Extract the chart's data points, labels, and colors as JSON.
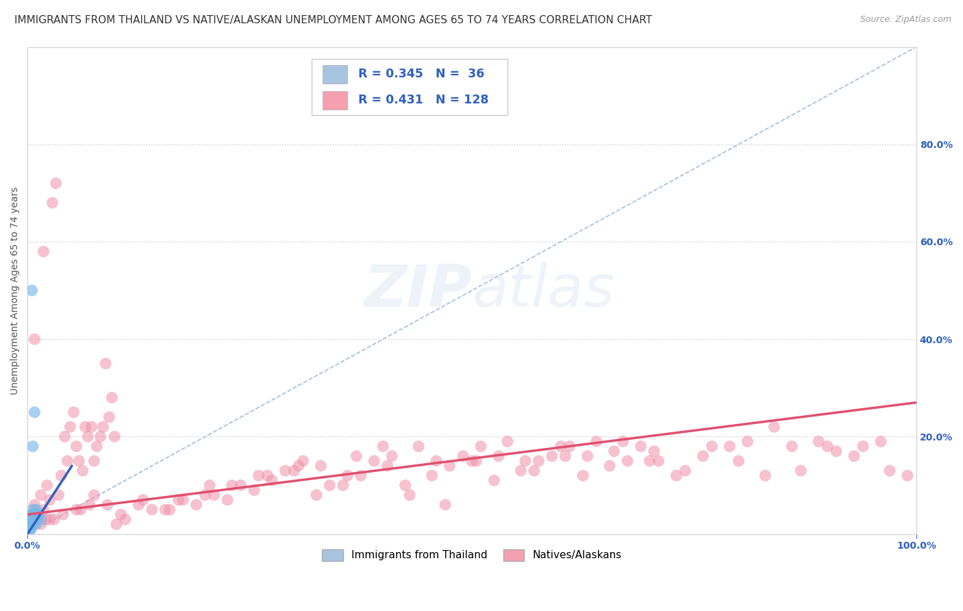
{
  "title": "IMMIGRANTS FROM THAILAND VS NATIVE/ALASKAN UNEMPLOYMENT AMONG AGES 65 TO 74 YEARS CORRELATION CHART",
  "source": "Source: ZipAtlas.com",
  "ylabel": "Unemployment Among Ages 65 to 74 years",
  "xlim": [
    0,
    1.0
  ],
  "ylim": [
    0,
    1.0
  ],
  "ytick_right_labels": [
    "20.0%",
    "40.0%",
    "60.0%",
    "80.0%"
  ],
  "ytick_right_values": [
    0.2,
    0.4,
    0.6,
    0.8
  ],
  "legend_color1": "#a8c4e0",
  "legend_color2": "#f4a0b0",
  "dot_color1": "#7ab8e8",
  "dot_color2": "#f090a8",
  "trendline_color1": "#3060c0",
  "trendline_color2": "#e05070",
  "diagonal_color": "#90b8e0",
  "background_color": "#ffffff",
  "title_fontsize": 11,
  "source_fontsize": 9,
  "label_fontsize": 10,
  "tick_fontsize": 10,
  "blue_scatter_x": [
    0.005,
    0.008,
    0.003,
    0.006,
    0.004,
    0.007,
    0.009,
    0.005,
    0.003,
    0.008,
    0.01,
    0.006,
    0.004,
    0.012,
    0.009,
    0.007,
    0.011,
    0.005,
    0.006,
    0.008,
    0.003,
    0.004,
    0.007,
    0.002,
    0.005,
    0.008,
    0.006,
    0.009,
    0.004,
    0.01,
    0.007,
    0.012,
    0.015,
    0.006,
    0.004,
    0.003
  ],
  "blue_scatter_y": [
    0.5,
    0.04,
    0.03,
    0.05,
    0.02,
    0.03,
    0.04,
    0.02,
    0.01,
    0.03,
    0.05,
    0.02,
    0.03,
    0.04,
    0.02,
    0.03,
    0.04,
    0.02,
    0.03,
    0.04,
    0.02,
    0.01,
    0.03,
    0.02,
    0.04,
    0.25,
    0.18,
    0.03,
    0.02,
    0.04,
    0.03,
    0.04,
    0.03,
    0.02,
    0.03,
    0.02
  ],
  "pink_scatter_x": [
    0.005,
    0.008,
    0.012,
    0.015,
    0.018,
    0.022,
    0.025,
    0.028,
    0.032,
    0.035,
    0.038,
    0.042,
    0.045,
    0.048,
    0.052,
    0.055,
    0.058,
    0.062,
    0.065,
    0.068,
    0.072,
    0.075,
    0.078,
    0.082,
    0.085,
    0.088,
    0.092,
    0.095,
    0.098,
    0.02,
    0.04,
    0.07,
    0.1,
    0.13,
    0.16,
    0.2,
    0.23,
    0.27,
    0.3,
    0.33,
    0.37,
    0.4,
    0.43,
    0.47,
    0.5,
    0.53,
    0.57,
    0.6,
    0.63,
    0.67,
    0.7,
    0.73,
    0.77,
    0.8,
    0.83,
    0.87,
    0.9,
    0.93,
    0.97,
    0.03,
    0.06,
    0.09,
    0.11,
    0.14,
    0.17,
    0.19,
    0.21,
    0.24,
    0.26,
    0.29,
    0.31,
    0.34,
    0.36,
    0.39,
    0.41,
    0.44,
    0.46,
    0.49,
    0.51,
    0.54,
    0.56,
    0.59,
    0.61,
    0.64,
    0.66,
    0.69,
    0.71,
    0.74,
    0.76,
    0.79,
    0.81,
    0.84,
    0.86,
    0.89,
    0.91,
    0.94,
    0.96,
    0.99,
    0.015,
    0.025,
    0.055,
    0.075,
    0.105,
    0.125,
    0.155,
    0.175,
    0.205,
    0.225,
    0.255,
    0.275,
    0.305,
    0.325,
    0.355,
    0.375,
    0.405,
    0.425,
    0.455,
    0.475,
    0.505,
    0.525,
    0.555,
    0.575,
    0.605,
    0.625,
    0.655,
    0.675,
    0.705,
    0.008,
    0.018
  ],
  "pink_scatter_y": [
    0.04,
    0.06,
    0.03,
    0.08,
    0.05,
    0.1,
    0.07,
    0.68,
    0.72,
    0.08,
    0.12,
    0.2,
    0.15,
    0.22,
    0.25,
    0.18,
    0.15,
    0.13,
    0.22,
    0.2,
    0.22,
    0.15,
    0.18,
    0.2,
    0.22,
    0.35,
    0.24,
    0.28,
    0.2,
    0.03,
    0.04,
    0.06,
    0.02,
    0.07,
    0.05,
    0.08,
    0.1,
    0.12,
    0.13,
    0.14,
    0.16,
    0.18,
    0.08,
    0.06,
    0.15,
    0.16,
    0.13,
    0.18,
    0.16,
    0.19,
    0.15,
    0.12,
    0.18,
    0.15,
    0.12,
    0.13,
    0.18,
    0.16,
    0.13,
    0.03,
    0.05,
    0.06,
    0.03,
    0.05,
    0.07,
    0.06,
    0.08,
    0.1,
    0.12,
    0.13,
    0.15,
    0.1,
    0.12,
    0.15,
    0.16,
    0.18,
    0.15,
    0.16,
    0.18,
    0.19,
    0.15,
    0.16,
    0.18,
    0.19,
    0.17,
    0.18,
    0.15,
    0.13,
    0.16,
    0.18,
    0.19,
    0.22,
    0.18,
    0.19,
    0.17,
    0.18,
    0.19,
    0.12,
    0.02,
    0.03,
    0.05,
    0.08,
    0.04,
    0.06,
    0.05,
    0.07,
    0.1,
    0.07,
    0.09,
    0.11,
    0.14,
    0.08,
    0.1,
    0.12,
    0.14,
    0.1,
    0.12,
    0.14,
    0.15,
    0.11,
    0.13,
    0.15,
    0.16,
    0.12,
    0.14,
    0.15,
    0.17,
    0.4,
    0.58
  ],
  "blue_trendline_x0": 0.0,
  "blue_trendline_y0": 0.0,
  "blue_trendline_x1": 0.05,
  "blue_trendline_y1": 0.14,
  "pink_trendline_x0": 0.0,
  "pink_trendline_y0": 0.04,
  "pink_trendline_x1": 1.0,
  "pink_trendline_y1": 0.27
}
